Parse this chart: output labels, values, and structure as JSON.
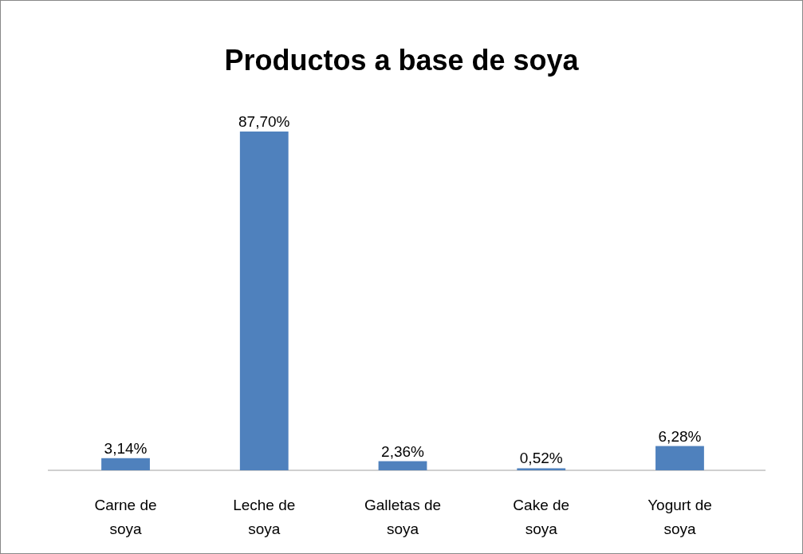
{
  "chart_data": {
    "type": "bar",
    "title": "Productos a base de soya",
    "categories": [
      "Carne de soya",
      "Leche de soya",
      "Galletas de soya",
      "Cake de soya",
      "Yogurt de soya"
    ],
    "values": [
      3.14,
      87.7,
      2.36,
      0.52,
      6.28
    ],
    "value_labels": [
      "3,14%",
      "87,70%",
      "2,36%",
      "0,52%",
      "6,28%"
    ],
    "color": "#4f81bd"
  }
}
